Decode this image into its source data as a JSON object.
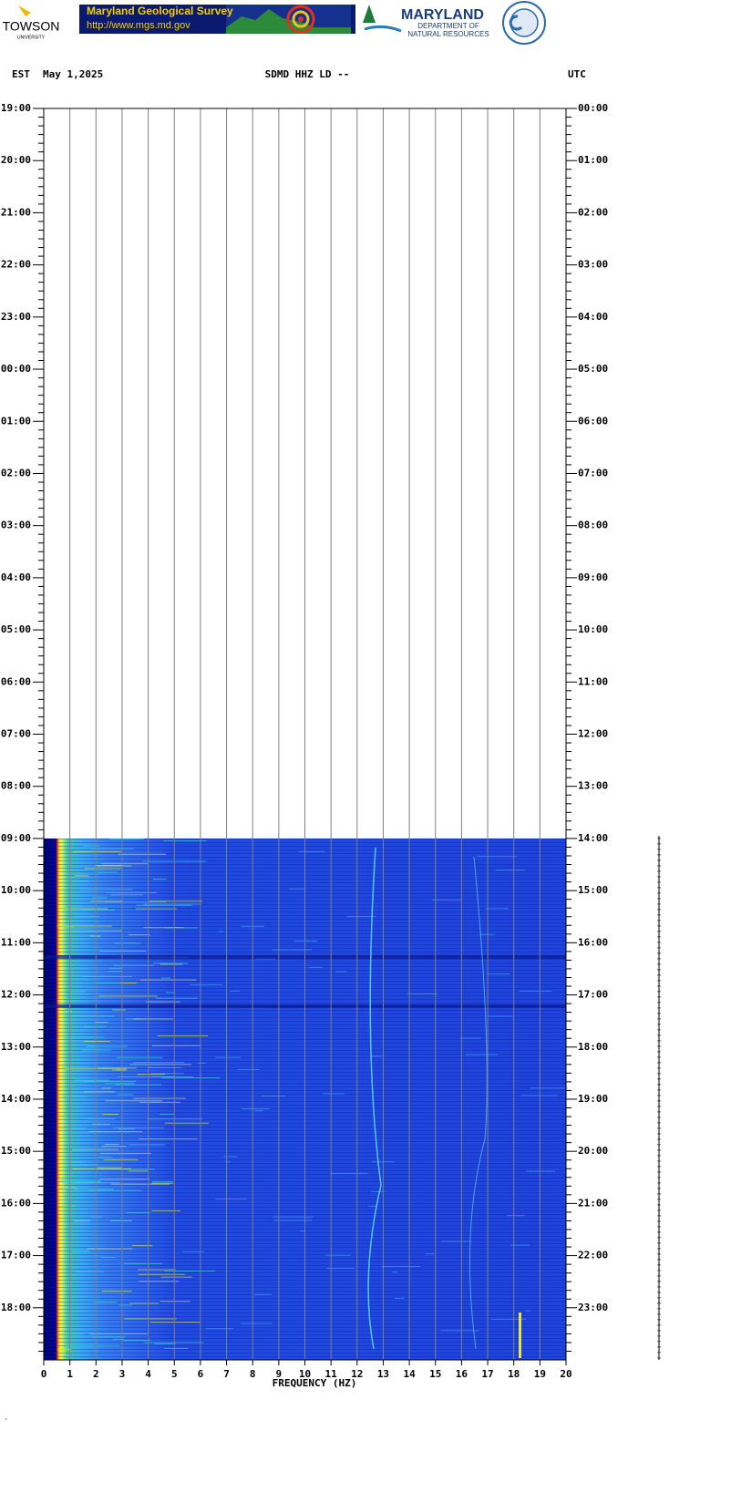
{
  "header": {
    "towson": "TOWSON",
    "towson_sub": "UNIVERSITY",
    "mgs_title": "Maryland Geological Survey",
    "mgs_url": "http://www.mgs.md.gov",
    "dnr_title": "MARYLAND",
    "dnr_sub1": "DEPARTMENT OF",
    "dnr_sub2": "NATURAL RESOURCES"
  },
  "chart_data": {
    "type": "spectrogram",
    "title": "SDMD HHZ LD --",
    "left_zone": "EST",
    "date": "May 1,2025",
    "right_zone": "UTC",
    "xlabel": "FREQUENCY (HZ)",
    "xlim": [
      0,
      20
    ],
    "xticks": [
      0,
      1,
      2,
      3,
      4,
      5,
      6,
      7,
      8,
      9,
      10,
      11,
      12,
      13,
      14,
      15,
      16,
      17,
      18,
      19,
      20
    ],
    "y_left": [
      "19:00",
      "20:00",
      "21:00",
      "22:00",
      "23:00",
      "00:00",
      "01:00",
      "02:00",
      "03:00",
      "04:00",
      "05:00",
      "06:00",
      "07:00",
      "08:00",
      "09:00",
      "10:00",
      "11:00",
      "12:00",
      "13:00",
      "14:00",
      "15:00",
      "16:00",
      "17:00",
      "18:00"
    ],
    "y_right": [
      "00:00",
      "01:00",
      "02:00",
      "03:00",
      "04:00",
      "05:00",
      "06:00",
      "07:00",
      "08:00",
      "09:00",
      "10:00",
      "11:00",
      "12:00",
      "13:00",
      "14:00",
      "15:00",
      "16:00",
      "17:00",
      "18:00",
      "19:00",
      "20:00",
      "21:00",
      "22:00",
      "23:00"
    ]
  }
}
